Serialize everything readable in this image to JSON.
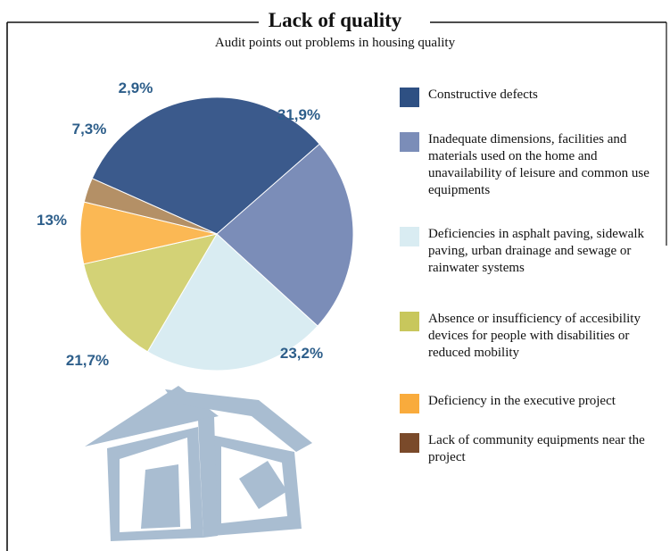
{
  "title": "Lack of quality",
  "subtitle": "Audit points out problems in housing quality",
  "chart_data": {
    "type": "pie",
    "slices": [
      {
        "label": "Constructive defects",
        "value": 31.9,
        "display": "31,9%",
        "color": "#3b5a8c"
      },
      {
        "label": "Inadequate dimensions, facilities and materials used on the home and unavailability of leisure and common use equipments",
        "value": 23.2,
        "display": "23,2%",
        "color": "#7b8db8"
      },
      {
        "label": "Deficiencies in asphalt paving, sidewalk paving, urban drainage and sewage or rainwater systems",
        "value": 21.7,
        "display": "21,7%",
        "color": "#d9ecf2"
      },
      {
        "label": "Absence or insufficiency of accesibility devices for people with disabilities or reduced mobility",
        "value": 13,
        "display": "13%",
        "color": "#d3d276"
      },
      {
        "label": "Deficiency in the executive project",
        "value": 7.3,
        "display": "7,3%",
        "color": "#fbb854"
      },
      {
        "label": "Lack of community equipments near the project",
        "value": 2.9,
        "display": "2,9%",
        "color": "#b49066"
      }
    ],
    "legend_position": "right",
    "label_color": "#2d5e8a"
  },
  "legend": [
    {
      "text": "Constructive defects",
      "color": "#2e5083"
    },
    {
      "text": "Inadequate dimensions, facilities and materials used on the home and unavailability of leisure and common use equipments",
      "color": "#7b8db8"
    },
    {
      "text": "Deficiencies in asphalt paving, sidewalk paving, urban drainage and sewage or rainwater systems",
      "color": "#d9ecf2"
    },
    {
      "text": "Absence or insufficiency of accesibility devices for people with disabilities or reduced mobility",
      "color": "#c8c75c"
    },
    {
      "text": "Deficiency in the executive project",
      "color": "#f9ab3c"
    },
    {
      "text": "Lack of community equipments near the project",
      "color": "#7a4a2a"
    }
  ],
  "illustration": {
    "icon": "broken-house-icon",
    "color": "#a9bdd1"
  }
}
